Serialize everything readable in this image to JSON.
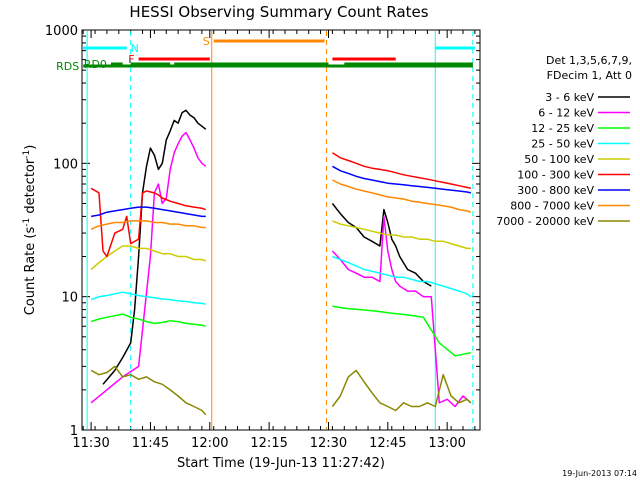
{
  "chart_data": {
    "type": "line",
    "title": "HESSI Observing Summary Count Rates",
    "xlabel": "Start Time (19-Jun-13 11:27:42)",
    "ylabel_main": "Count Rate (s",
    "ylabel_sup1": "-1",
    "ylabel_mid": " detector",
    "ylabel_sup2": "-1",
    "ylabel_end": ")",
    "y_scale": "log",
    "ylim": [
      1,
      1000
    ],
    "xlim_minutes": [
      -2.3,
      98.3
    ],
    "x_unit": "minutes after 11:30 UT",
    "x_ticks": [
      {
        "value": 0,
        "label": "11:30"
      },
      {
        "value": 15,
        "label": "11:45"
      },
      {
        "value": 30,
        "label": "12:00"
      },
      {
        "value": 45,
        "label": "12:15"
      },
      {
        "value": 60,
        "label": "12:30"
      },
      {
        "value": 75,
        "label": "12:45"
      },
      {
        "value": 90,
        "label": "13:00"
      }
    ],
    "y_ticks": [
      {
        "value": 1,
        "label": "1"
      },
      {
        "value": 10,
        "label": "10"
      },
      {
        "value": 100,
        "label": "100"
      },
      {
        "value": 1000,
        "label": "1000"
      }
    ],
    "legend_header": [
      "Det 1,3,5,6,7,9,",
      "FDecim 1, Att 0"
    ],
    "legend_position": "right",
    "footer": "19-Jun-2013 07:14",
    "series": [
      {
        "name": "3 - 6 keV",
        "color": "#000000",
        "segments": [
          {
            "x": [
              3,
              6,
              8,
              10,
              11,
              12,
              13,
              14,
              15,
              16,
              17,
              18,
              19,
              20,
              21,
              22,
              23,
              24,
              25,
              26,
              27,
              28,
              29
            ],
            "y": [
              2.2,
              2.8,
              3.5,
              4.5,
              8,
              20,
              60,
              95,
              130,
              115,
              90,
              100,
              150,
              175,
              210,
              200,
              240,
              250,
              230,
              220,
              200,
              190,
              180
            ]
          },
          {
            "x": [
              61,
              63,
              65,
              67,
              69,
              71,
              73,
              74,
              75,
              76,
              77,
              78,
              80,
              82,
              84,
              86
            ],
            "y": [
              50,
              42,
              36,
              33,
              28,
              26,
              24,
              45,
              36,
              27,
              24,
              20,
              16,
              15,
              13,
              12
            ]
          }
        ]
      },
      {
        "name": "6 - 12 keV",
        "color": "#ff00ff",
        "segments": [
          {
            "x": [
              0,
              8,
              12,
              15,
              16,
              17,
              18,
              19,
              20,
              21,
              22,
              23,
              24,
              25,
              26,
              27,
              28,
              29
            ],
            "y": [
              1.6,
              2.5,
              3,
              20,
              60,
              70,
              50,
              55,
              90,
              120,
              140,
              160,
              170,
              150,
              130,
              110,
              100,
              95
            ]
          },
          {
            "x": [
              61,
              63,
              65,
              67,
              69,
              71,
              73,
              74,
              75,
              76,
              77,
              78,
              80,
              82,
              84,
              86,
              88,
              90,
              92,
              94,
              96
            ],
            "y": [
              22,
              19,
              16,
              15,
              14,
              14,
              13,
              40,
              22,
              16,
              13,
              12,
              11,
              11,
              10,
              10,
              1.6,
              1.7,
              1.5,
              1.8,
              1.6
            ]
          }
        ]
      },
      {
        "name": "12 - 25 keV",
        "color": "#00ff00",
        "segments": [
          {
            "x": [
              0,
              2,
              4,
              6,
              8,
              10,
              12,
              14,
              16,
              18,
              20,
              22,
              24,
              26,
              28,
              29
            ],
            "y": [
              6.5,
              6.8,
              7.0,
              7.2,
              7.4,
              7.0,
              6.8,
              6.5,
              6.3,
              6.4,
              6.6,
              6.5,
              6.3,
              6.2,
              6.1,
              6.0
            ]
          },
          {
            "x": [
              61,
              64,
              68,
              72,
              76,
              80,
              84,
              88,
              92,
              96
            ],
            "y": [
              8.5,
              8.2,
              8.0,
              7.8,
              7.5,
              7.3,
              7.0,
              4.5,
              3.6,
              3.8
            ]
          }
        ]
      },
      {
        "name": "25 - 50 keV",
        "color": "#00ffff",
        "segments": [
          {
            "x": [
              0,
              2,
              4,
              6,
              8,
              10,
              12,
              14,
              16,
              18,
              20,
              22,
              24,
              26,
              28,
              29
            ],
            "y": [
              9.5,
              10.0,
              10.2,
              10.5,
              10.8,
              10.5,
              10.2,
              10.0,
              9.8,
              9.6,
              9.5,
              9.3,
              9.2,
              9.0,
              8.9,
              8.8
            ]
          },
          {
            "x": [
              61,
              63,
              65,
              67,
              69,
              71,
              73,
              75,
              77,
              79,
              81,
              83,
              85,
              87,
              89,
              91,
              93,
              95,
              96
            ],
            "y": [
              20,
              19,
              18,
              17,
              16,
              15.5,
              15,
              14.5,
              14,
              14,
              13.5,
              13,
              13,
              12.5,
              12,
              11.5,
              11,
              10.5,
              10
            ]
          }
        ]
      },
      {
        "name": "50 - 100 keV",
        "color": "#cccc00",
        "segments": [
          {
            "x": [
              0,
              2,
              4,
              6,
              8,
              10,
              12,
              14,
              16,
              18,
              20,
              22,
              24,
              26,
              28,
              29
            ],
            "y": [
              16,
              18,
              20,
              22,
              24,
              24,
              23,
              23,
              22,
              21,
              21,
              20,
              20,
              19,
              19,
              18.5
            ]
          },
          {
            "x": [
              61,
              63,
              65,
              67,
              69,
              71,
              73,
              75,
              77,
              79,
              81,
              83,
              85,
              87,
              89,
              91,
              93,
              95,
              96
            ],
            "y": [
              37,
              35,
              34,
              33,
              32,
              31,
              30,
              29,
              29,
              28,
              28,
              27,
              27,
              26,
              26,
              25,
              24,
              23,
              23
            ]
          }
        ]
      },
      {
        "name": "100 - 300 keV",
        "color": "#ff0000",
        "segments": [
          {
            "x": [
              0,
              2,
              3,
              4,
              6,
              8,
              9,
              10,
              12,
              13,
              14,
              16,
              17,
              18,
              20,
              22,
              24,
              26,
              28,
              29
            ],
            "y": [
              65,
              60,
              22,
              20,
              30,
              32,
              40,
              25,
              27,
              60,
              62,
              60,
              58,
              55,
              52,
              50,
              48,
              47,
              46,
              45
            ]
          },
          {
            "x": [
              61,
              63,
              65,
              67,
              69,
              71,
              73,
              75,
              77,
              79,
              81,
              83,
              85,
              87,
              89,
              91,
              93,
              95,
              96
            ],
            "y": [
              120,
              110,
              105,
              100,
              95,
              92,
              90,
              88,
              85,
              82,
              80,
              78,
              76,
              74,
              72,
              70,
              68,
              66,
              65
            ]
          }
        ]
      },
      {
        "name": "300 - 800 keV",
        "color": "#0000ff",
        "segments": [
          {
            "x": [
              0,
              2,
              4,
              6,
              8,
              10,
              12,
              14,
              16,
              18,
              20,
              22,
              24,
              26,
              28,
              29
            ],
            "y": [
              40,
              41,
              43,
              44,
              45,
              46,
              47,
              47,
              46,
              45,
              44,
              43,
              42,
              41,
              40,
              40
            ]
          },
          {
            "x": [
              61,
              63,
              65,
              67,
              69,
              71,
              73,
              75,
              77,
              79,
              81,
              83,
              85,
              87,
              89,
              91,
              93,
              95,
              96
            ],
            "y": [
              95,
              88,
              84,
              80,
              77,
              75,
              73,
              71,
              70,
              69,
              68,
              67,
              66,
              65,
              64,
              63,
              62,
              61,
              60
            ]
          }
        ]
      },
      {
        "name": "800 - 7000 keV",
        "color": "#ff8800",
        "segments": [
          {
            "x": [
              0,
              2,
              4,
              6,
              8,
              10,
              12,
              14,
              16,
              18,
              20,
              22,
              24,
              26,
              28,
              29
            ],
            "y": [
              32,
              34,
              35,
              36,
              36,
              37,
              37,
              37,
              36,
              36,
              35,
              35,
              34,
              34,
              33,
              33
            ]
          },
          {
            "x": [
              61,
              63,
              65,
              67,
              69,
              71,
              73,
              75,
              77,
              79,
              81,
              83,
              85,
              87,
              89,
              91,
              93,
              95,
              96
            ],
            "y": [
              75,
              70,
              67,
              64,
              62,
              60,
              58,
              56,
              55,
              54,
              52,
              51,
              50,
              49,
              48,
              47,
              45,
              44,
              43
            ]
          }
        ]
      },
      {
        "name": "7000 - 20000 keV",
        "color": "#888800",
        "segments": [
          {
            "x": [
              0,
              2,
              4,
              6,
              8,
              10,
              12,
              14,
              16,
              18,
              20,
              22,
              24,
              26,
              28,
              29
            ],
            "y": [
              2.8,
              2.6,
              2.7,
              3.0,
              2.5,
              2.6,
              2.4,
              2.5,
              2.3,
              2.2,
              2.0,
              1.8,
              1.6,
              1.5,
              1.4,
              1.3
            ]
          },
          {
            "x": [
              61,
              63,
              65,
              67,
              69,
              71,
              73,
              75,
              77,
              79,
              81,
              83,
              85,
              87,
              89,
              91,
              93,
              95,
              96
            ],
            "y": [
              1.5,
              1.8,
              2.5,
              2.8,
              2.3,
              1.9,
              1.6,
              1.5,
              1.4,
              1.6,
              1.5,
              1.5,
              1.6,
              1.5,
              2.6,
              1.8,
              1.6,
              1.7,
              1.6
            ]
          }
        ]
      }
    ],
    "markers": [
      {
        "label": "",
        "color": "#00ffff",
        "style": "solid",
        "x": -1
      },
      {
        "label": "",
        "color": "#00ffff",
        "style": "dashed",
        "x": 10
      },
      {
        "label": "",
        "color": "#ff8800",
        "style": "solid",
        "x": 30.5
      },
      {
        "label": "",
        "color": "#ff8800",
        "style": "dashed",
        "x": 59.5
      },
      {
        "label": "",
        "color": "#00ffff",
        "style": "solid",
        "x": 87
      },
      {
        "label": "",
        "color": "#00ffff",
        "style": "dashed",
        "x": 96.5
      }
    ],
    "flag_bars": [
      {
        "label": "N",
        "color": "#00ffff",
        "row": 1,
        "ranges": [
          [
            -2,
            9
          ]
        ],
        "label_at": 10,
        "label_side": "right"
      },
      {
        "label": "",
        "color": "#00ffff",
        "row": 1,
        "ranges": [
          [
            87,
            97
          ]
        ]
      },
      {
        "label": "S",
        "color": "#ff8800",
        "row": 0,
        "ranges": [
          [
            31,
            59
          ]
        ],
        "label_at": 30,
        "label_side": "left"
      },
      {
        "label": "F",
        "color": "#ff0000",
        "row": 2,
        "ranges": [
          [
            12,
            30
          ],
          [
            61,
            77
          ]
        ],
        "label_at": 11,
        "label_side": "left"
      },
      {
        "label": "RD0",
        "color": "#008800",
        "row": 3,
        "ranges": [
          [
            5,
            8
          ]
        ],
        "label_at": 4,
        "label_side": "left"
      },
      {
        "label": "RDS",
        "color": "#008800",
        "row": 4,
        "ranges": [
          [
            -2,
            96.5
          ]
        ],
        "label_at": -3,
        "label_side": "left"
      },
      {
        "label": "",
        "color": "#008800",
        "row": 3,
        "ranges": [
          [
            10,
            20
          ],
          [
            21,
            60
          ],
          [
            64,
            96.5
          ]
        ]
      },
      {
        "label": "",
        "color": "#008800",
        "row": 4,
        "ranges": [
          [
            60,
            65
          ]
        ]
      }
    ]
  }
}
